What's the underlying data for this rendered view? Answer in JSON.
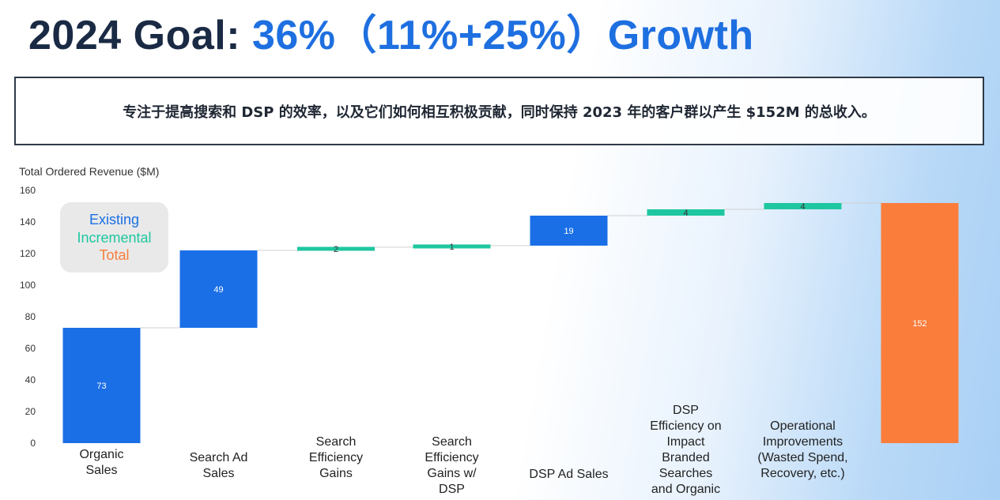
{
  "header": {
    "title_lead": "2024 Goal: ",
    "title_accent": "36%（11%+25%）Growth"
  },
  "banner": {
    "text": "专注于提高搜索和 DSP 的效率，以及它们如何相互积极贡献，同时保持 2023 年的客户群以产生 $152M 的总收入。"
  },
  "chart_data": {
    "type": "waterfall",
    "title": "",
    "ylabel": "Total Ordered Revenue ($M)",
    "xlabel": "",
    "ylim": [
      0,
      160
    ],
    "yticks": [
      0,
      20,
      40,
      60,
      80,
      100,
      120,
      140,
      160
    ],
    "grid": false,
    "legend_position": "top-left",
    "legend": [
      {
        "name": "Existing",
        "color": "#1a6fe6"
      },
      {
        "name": "Incremental",
        "color": "#1fc7a0"
      },
      {
        "name": "Total",
        "color": "#fa7d3c"
      }
    ],
    "categories": [
      "Organic\nSales",
      "Search Ad\nSales",
      "Search\nEfficiency\nGains",
      "Search\nEfficiency\nGains w/\nDSP",
      "DSP Ad Sales",
      "DSP\nEfficiency on\nImpact\nBranded\nSearches\nand Organic",
      "Operational\nImprovements\n(Wasted Spend,\nRecovery, etc.)",
      ""
    ],
    "values": [
      73,
      49,
      2,
      1,
      19,
      4,
      4,
      152
    ],
    "kinds": [
      "Existing",
      "Existing",
      "Incremental",
      "Incremental",
      "Existing",
      "Incremental",
      "Incremental",
      "Total"
    ],
    "data_labels": [
      "73",
      "49",
      "2",
      "1",
      "19",
      "4",
      "4",
      "152"
    ]
  }
}
